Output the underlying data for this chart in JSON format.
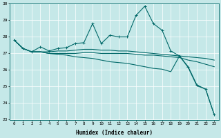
{
  "xlabel": "Humidex (Indice chaleur)",
  "xlim": [
    -0.5,
    23.5
  ],
  "ylim": [
    23,
    30
  ],
  "yticks": [
    23,
    24,
    25,
    26,
    27,
    28,
    29,
    30
  ],
  "xticks": [
    0,
    1,
    2,
    3,
    4,
    5,
    6,
    7,
    8,
    9,
    10,
    11,
    12,
    13,
    14,
    15,
    16,
    17,
    18,
    19,
    20,
    21,
    22,
    23
  ],
  "background_color": "#c5e8e8",
  "grid_color": "#ffffff",
  "line_color": "#006868",
  "line1_x": [
    0,
    1,
    2,
    3,
    4,
    5,
    6,
    7,
    8,
    9,
    10,
    11,
    12,
    13,
    14,
    15,
    16,
    17,
    18,
    19,
    20,
    21,
    22,
    23
  ],
  "line1_y": [
    27.8,
    27.3,
    27.1,
    27.4,
    27.15,
    27.3,
    27.35,
    27.6,
    27.65,
    28.8,
    27.6,
    28.1,
    28.0,
    28.0,
    29.3,
    29.85,
    28.8,
    28.4,
    27.15,
    26.85,
    26.2,
    25.1,
    24.85,
    23.3
  ],
  "line2_x": [
    0,
    1,
    2,
    3,
    4,
    5,
    6,
    7,
    8,
    9,
    10,
    11,
    12,
    13,
    14,
    15,
    16,
    17,
    18,
    19,
    20,
    21,
    22,
    23
  ],
  "line2_y": [
    27.8,
    27.3,
    27.1,
    27.1,
    27.1,
    27.15,
    27.15,
    27.2,
    27.25,
    27.25,
    27.2,
    27.2,
    27.15,
    27.15,
    27.1,
    27.05,
    27.0,
    26.95,
    26.9,
    26.85,
    26.8,
    26.75,
    26.7,
    26.6
  ],
  "line3_x": [
    0,
    1,
    2,
    3,
    4,
    5,
    6,
    7,
    8,
    9,
    10,
    11,
    12,
    13,
    14,
    15,
    16,
    17,
    18,
    19,
    20,
    21,
    22,
    23
  ],
  "line3_y": [
    27.8,
    27.3,
    27.1,
    27.1,
    27.0,
    27.0,
    27.0,
    27.0,
    27.05,
    27.05,
    27.0,
    27.0,
    27.0,
    27.0,
    26.95,
    26.9,
    26.9,
    26.85,
    26.8,
    26.75,
    26.6,
    26.5,
    26.35,
    26.2
  ],
  "line4_x": [
    0,
    1,
    2,
    3,
    4,
    5,
    6,
    7,
    8,
    9,
    10,
    11,
    12,
    13,
    14,
    15,
    16,
    17,
    18,
    19,
    20,
    21,
    22,
    23
  ],
  "line4_y": [
    27.8,
    27.3,
    27.1,
    27.1,
    27.0,
    26.95,
    26.9,
    26.8,
    26.75,
    26.7,
    26.6,
    26.5,
    26.45,
    26.4,
    26.3,
    26.2,
    26.1,
    26.05,
    25.9,
    26.85,
    26.15,
    25.05,
    24.85,
    23.3
  ]
}
